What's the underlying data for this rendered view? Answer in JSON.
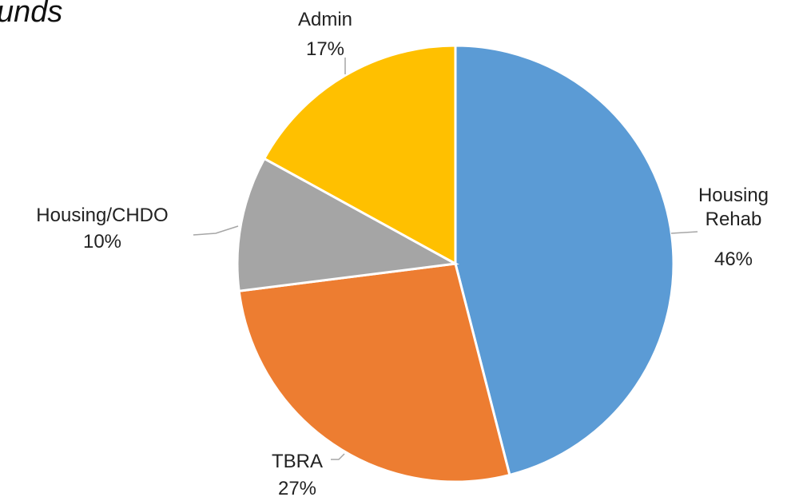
{
  "chart_data": {
    "type": "pie",
    "title": "unds",
    "categories": [
      "Housing Rehab",
      "TBRA",
      "Housing/CHDO",
      "Admin"
    ],
    "values": [
      46,
      27,
      10,
      17
    ],
    "value_labels": [
      "46%",
      "27%",
      "10%",
      "17%"
    ],
    "colors": [
      "#5b9bd5",
      "#ed7d31",
      "#a5a5a5",
      "#ffc000"
    ]
  }
}
